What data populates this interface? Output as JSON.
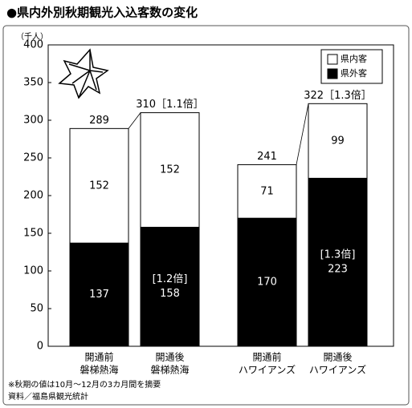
{
  "chart_data": {
    "type": "stacked-bar",
    "title": "●県内外別秋期観光入込客数の変化",
    "y_label": "（千人）",
    "categories": [
      [
        "開通前",
        "磐梯熱海"
      ],
      [
        "開通後",
        "磐梯熱海"
      ],
      [
        "開通前",
        "ハワイアンズ"
      ],
      [
        "開通後",
        "ハワイアンズ"
      ]
    ],
    "series": [
      {
        "name": "県外客",
        "color": "#000000",
        "values": [
          137,
          158,
          170,
          223
        ],
        "notes": [
          null,
          "[1.2倍]",
          null,
          "[1.3倍]"
        ]
      },
      {
        "name": "県内客",
        "color": "#ffffff",
        "values": [
          152,
          152,
          71,
          99
        ]
      }
    ],
    "totals": [
      289,
      310,
      241,
      322
    ],
    "total_labels": [
      "289",
      "310［1.1倍］",
      "241",
      "322［1.3倍］"
    ],
    "ylim": [
      0,
      400
    ],
    "yticks": [
      0,
      50,
      100,
      150,
      200,
      250,
      300,
      350,
      400
    ],
    "footnotes": [
      "※秋期の値は10月～12月の3カ月間を摘要",
      "資料／福島県観光統計"
    ]
  }
}
